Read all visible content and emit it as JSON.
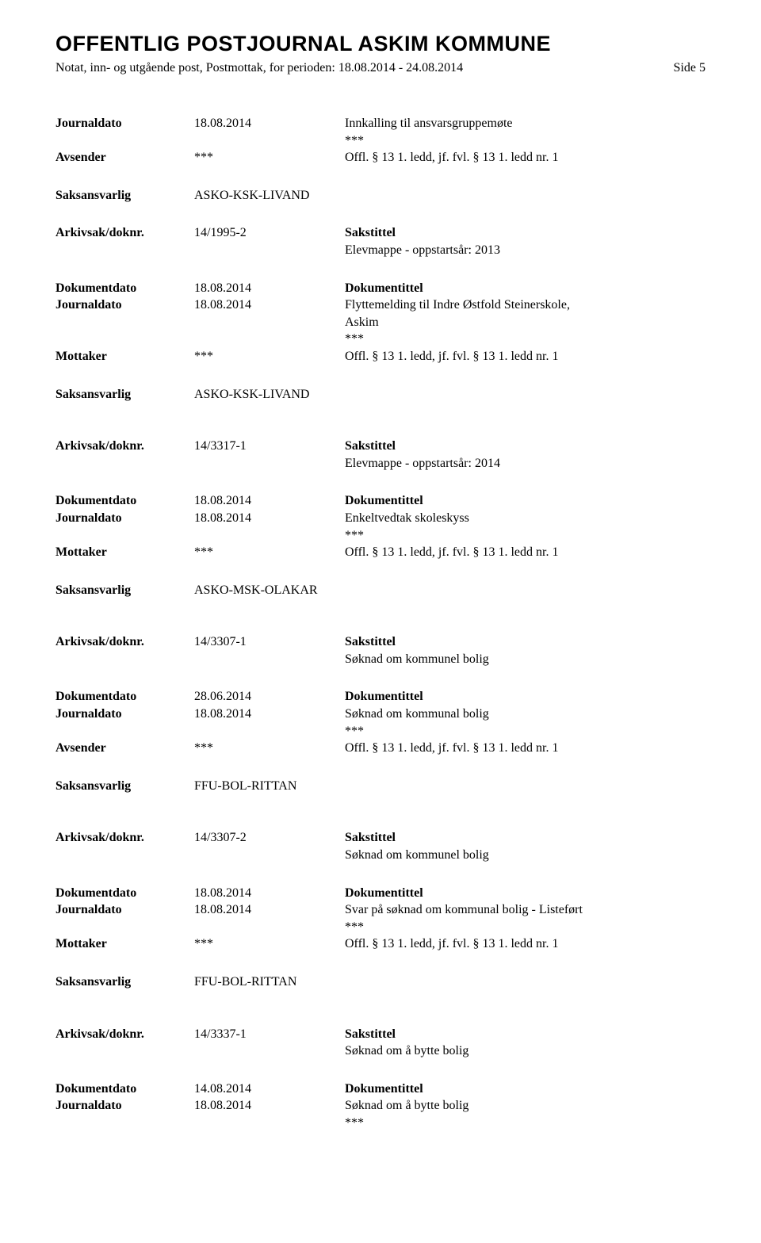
{
  "header": {
    "title": "OFFENTLIG POSTJOURNAL ASKIM KOMMUNE",
    "subtitle": "Notat, inn- og utgående post, Postmottak, for perioden: 18.08.2014 - 24.08.2014",
    "page": "Side 5"
  },
  "labels": {
    "journaldato": "Journaldato",
    "avsender": "Avsender",
    "mottaker": "Mottaker",
    "saksansvarlig": "Saksansvarlig",
    "arkivsak": "Arkivsak/doknr.",
    "dokumentdato": "Dokumentdato",
    "sakstittel": "Sakstittel",
    "dokumentittel": "Dokumentittel"
  },
  "entries": [
    {
      "top": {
        "journaldato": "18.08.2014",
        "journaldato_right": "Innkalling til ansvarsgruppemøte",
        "stars": "***",
        "party_label": "Avsender",
        "party_mid": "***",
        "party_right": "Offl. § 13 1. ledd, jf. fvl. § 13 1. ledd nr. 1",
        "saksansvarlig": "ASKO-KSK-LIVAND"
      },
      "arkivsak": "14/1995-2",
      "sakstittel": "Elevmappe - oppstartsår: 2013",
      "dokumentdato": "18.08.2014",
      "journaldato2": "18.08.2014",
      "dokumentittel_lines": [
        "Flyttemelding til Indre Østfold Steinerskole,",
        "Askim",
        "***"
      ],
      "party2_label": "Mottaker",
      "party2_mid": "***",
      "party2_right": "Offl. § 13 1. ledd, jf. fvl. § 13 1. ledd nr. 1",
      "saksansvarlig2": "ASKO-KSK-LIVAND"
    },
    {
      "arkivsak": "14/3317-1",
      "sakstittel": "Elevmappe - oppstartsår: 2014",
      "dokumentdato": "18.08.2014",
      "journaldato2": "18.08.2014",
      "dokumentittel_lines": [
        "Enkeltvedtak skoleskyss",
        "***"
      ],
      "party2_label": "Mottaker",
      "party2_mid": "***",
      "party2_right": "Offl. § 13 1. ledd, jf. fvl. § 13 1. ledd nr. 1",
      "saksansvarlig2": "ASKO-MSK-OLAKAR"
    },
    {
      "arkivsak": "14/3307-1",
      "sakstittel": "Søknad om kommunel bolig",
      "dokumentdato": "28.06.2014",
      "journaldato2": "18.08.2014",
      "dokumentittel_lines": [
        "Søknad om kommunal bolig",
        "***"
      ],
      "party2_label": "Avsender",
      "party2_mid": "***",
      "party2_right": "Offl. § 13 1. ledd, jf. fvl. § 13 1. ledd nr. 1",
      "saksansvarlig2": "FFU-BOL-RITTAN"
    },
    {
      "arkivsak": "14/3307-2",
      "sakstittel": "Søknad om kommunel bolig",
      "dokumentdato": "18.08.2014",
      "journaldato2": "18.08.2014",
      "dokumentittel_lines": [
        "Svar på søknad om kommunal bolig - Listeført",
        "***"
      ],
      "party2_label": "Mottaker",
      "party2_mid": "***",
      "party2_right": "Offl. § 13 1. ledd, jf. fvl. § 13 1. ledd nr. 1",
      "saksansvarlig2": "FFU-BOL-RITTAN"
    },
    {
      "arkivsak": "14/3337-1",
      "sakstittel": "Søknad om å bytte bolig",
      "dokumentdato": "14.08.2014",
      "journaldato2": "18.08.2014",
      "dokumentittel_lines": [
        "Søknad om å bytte bolig",
        "***"
      ]
    }
  ]
}
